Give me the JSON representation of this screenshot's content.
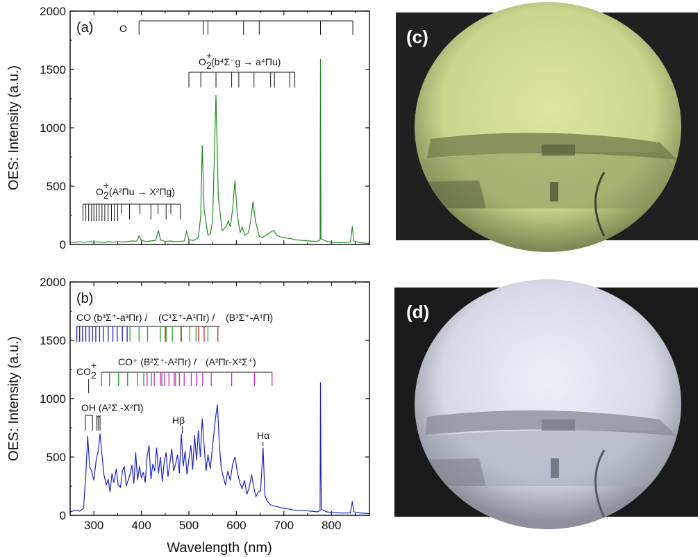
{
  "colors": {
    "spectrum_a": "#1f8a1f",
    "spectrum_b": "#1a22c8",
    "co_blue": "#1a22c8",
    "co_green": "#19b219",
    "co_red": "#d42020",
    "coplus_green": "#19a019",
    "coplus_magenta": "#d21fd2",
    "photo_c_glow": "#dfe7a6",
    "photo_d_glow": "#e4e6f2"
  },
  "chart_data": [
    {
      "type": "line",
      "panel_label": "(a)",
      "xlabel": "",
      "ylabel": "OES: Intensity (a.u.)",
      "xlim": [
        250,
        880
      ],
      "ylim": [
        0,
        2000
      ],
      "x_ticks": [],
      "y_ticks": [
        "0",
        "500",
        "1000",
        "1500",
        "2000"
      ],
      "series": [
        {
          "color": "#1f8a1f",
          "points": [
            [
              250,
              20
            ],
            [
              260,
              18
            ],
            [
              270,
              22
            ],
            [
              280,
              19
            ],
            [
              290,
              24
            ],
            [
              300,
              20
            ],
            [
              310,
              22
            ],
            [
              320,
              18
            ],
            [
              330,
              23
            ],
            [
              340,
              20
            ],
            [
              350,
              25
            ],
            [
              360,
              22
            ],
            [
              370,
              24
            ],
            [
              380,
              30
            ],
            [
              390,
              28
            ],
            [
              395,
              75
            ],
            [
              400,
              35
            ],
            [
              410,
              25
            ],
            [
              420,
              30
            ],
            [
              430,
              35
            ],
            [
              436,
              120
            ],
            [
              440,
              40
            ],
            [
              450,
              25
            ],
            [
              460,
              30
            ],
            [
              470,
              25
            ],
            [
              480,
              25
            ],
            [
              490,
              30
            ],
            [
              495,
              110
            ],
            [
              500,
              40
            ],
            [
              510,
              35
            ],
            [
              520,
              60
            ],
            [
              525,
              250
            ],
            [
              528,
              850
            ],
            [
              532,
              300
            ],
            [
              540,
              80
            ],
            [
              545,
              90
            ],
            [
              550,
              200
            ],
            [
              557,
              1280
            ],
            [
              562,
              400
            ],
            [
              570,
              120
            ],
            [
              578,
              150
            ],
            [
              583,
              200
            ],
            [
              587,
              150
            ],
            [
              592,
              300
            ],
            [
              597,
              550
            ],
            [
              602,
              250
            ],
            [
              608,
              100
            ],
            [
              612,
              150
            ],
            [
              618,
              80
            ],
            [
              625,
              100
            ],
            [
              630,
              200
            ],
            [
              635,
              370
            ],
            [
              640,
              200
            ],
            [
              648,
              70
            ],
            [
              655,
              60
            ],
            [
              662,
              80
            ],
            [
              670,
              100
            ],
            [
              678,
              120
            ],
            [
              685,
              80
            ],
            [
              695,
              60
            ],
            [
              705,
              55
            ],
            [
              715,
              50
            ],
            [
              725,
              40
            ],
            [
              740,
              35
            ],
            [
              755,
              30
            ],
            [
              770,
              25
            ],
            [
              776,
              40
            ],
            [
              777,
              1590
            ],
            [
              778,
              50
            ],
            [
              790,
              25
            ],
            [
              800,
              20
            ],
            [
              820,
              15
            ],
            [
              840,
              20
            ],
            [
              844,
              155
            ],
            [
              847,
              30
            ],
            [
              860,
              15
            ],
            [
              880,
              10
            ]
          ]
        }
      ],
      "annotations": [
        {
          "label": "O",
          "lines": [
            395,
            530,
            540,
            615,
            648,
            777,
            845
          ]
        },
        {
          "label_base": "O",
          "label_sup": "+",
          "label_sub": "2",
          "label_rest": "(b⁴Σ⁻g → a⁴Πu)",
          "lines": [
            500,
            525,
            557,
            590,
            605,
            637,
            672,
            680,
            712,
            723
          ]
        },
        {
          "label_base": "O",
          "label_sup": "+",
          "label_sub": "2",
          "label_rest": "(A²Πu → X²Πg)",
          "lines": [
            277,
            283,
            289,
            295,
            300,
            305,
            311,
            317,
            323,
            330,
            337,
            343,
            350,
            358,
            375,
            397,
            420,
            435,
            452,
            462,
            482
          ]
        }
      ]
    },
    {
      "type": "line",
      "panel_label": "(b)",
      "xlabel": "Wavelength (nm)",
      "ylabel": "OES: Intensity (a.u.)",
      "xlim": [
        250,
        880
      ],
      "ylim": [
        0,
        2000
      ],
      "x_ticks": [
        "300",
        "400",
        "500",
        "600",
        "700",
        "800"
      ],
      "y_ticks": [
        "0",
        "500",
        "1000",
        "1500",
        "2000"
      ],
      "series": [
        {
          "color": "#1a22c8",
          "points": [
            [
              250,
              30
            ],
            [
              258,
              40
            ],
            [
              265,
              45
            ],
            [
              270,
              35
            ],
            [
              278,
              60
            ],
            [
              283,
              350
            ],
            [
              287,
              680
            ],
            [
              291,
              420
            ],
            [
              295,
              380
            ],
            [
              300,
              300
            ],
            [
              305,
              480
            ],
            [
              309,
              550
            ],
            [
              313,
              700
            ],
            [
              317,
              520
            ],
            [
              321,
              350
            ],
            [
              326,
              260
            ],
            [
              330,
              310
            ],
            [
              334,
              200
            ],
            [
              338,
              360
            ],
            [
              342,
              280
            ],
            [
              347,
              400
            ],
            [
              351,
              260
            ],
            [
              356,
              240
            ],
            [
              360,
              380
            ],
            [
              364,
              420
            ],
            [
              368,
              250
            ],
            [
              372,
              300
            ],
            [
              376,
              350
            ],
            [
              380,
              430
            ],
            [
              384,
              270
            ],
            [
              388,
              540
            ],
            [
              392,
              300
            ],
            [
              396,
              420
            ],
            [
              400,
              320
            ],
            [
              404,
              370
            ],
            [
              408,
              280
            ],
            [
              412,
              500
            ],
            [
              416,
              600
            ],
            [
              420,
              310
            ],
            [
              424,
              440
            ],
            [
              428,
              380
            ],
            [
              432,
              580
            ],
            [
              436,
              360
            ],
            [
              440,
              500
            ],
            [
              444,
              290
            ],
            [
              448,
              460
            ],
            [
              452,
              540
            ],
            [
              456,
              330
            ],
            [
              460,
              450
            ],
            [
              464,
              570
            ],
            [
              468,
              380
            ],
            [
              472,
              440
            ],
            [
              476,
              520
            ],
            [
              480,
              360
            ],
            [
              484,
              700
            ],
            [
              488,
              420
            ],
            [
              492,
              550
            ],
            [
              496,
              350
            ],
            [
              500,
              480
            ],
            [
              504,
              600
            ],
            [
              508,
              390
            ],
            [
              512,
              690
            ],
            [
              516,
              470
            ],
            [
              520,
              730
            ],
            [
              524,
              500
            ],
            [
              528,
              830
            ],
            [
              532,
              600
            ],
            [
              536,
              380
            ],
            [
              540,
              520
            ],
            [
              545,
              400
            ],
            [
              550,
              600
            ],
            [
              556,
              830
            ],
            [
              560,
              950
            ],
            [
              564,
              620
            ],
            [
              568,
              400
            ],
            [
              573,
              320
            ],
            [
              577,
              260
            ],
            [
              582,
              380
            ],
            [
              587,
              300
            ],
            [
              592,
              440
            ],
            [
              597,
              500
            ],
            [
              602,
              370
            ],
            [
              607,
              280
            ],
            [
              612,
              230
            ],
            [
              617,
              300
            ],
            [
              622,
              180
            ],
            [
              627,
              240
            ],
            [
              632,
              350
            ],
            [
              636,
              250
            ],
            [
              641,
              160
            ],
            [
              646,
              200
            ],
            [
              651,
              210
            ],
            [
              656,
              580
            ],
            [
              660,
              170
            ],
            [
              665,
              120
            ],
            [
              672,
              90
            ],
            [
              680,
              80
            ],
            [
              690,
              70
            ],
            [
              700,
              60
            ],
            [
              710,
              55
            ],
            [
              720,
              45
            ],
            [
              730,
              40
            ],
            [
              745,
              40
            ],
            [
              760,
              35
            ],
            [
              770,
              30
            ],
            [
              776,
              40
            ],
            [
              777,
              1140
            ],
            [
              778,
              380
            ],
            [
              779,
              50
            ],
            [
              790,
              30
            ],
            [
              800,
              25
            ],
            [
              820,
              20
            ],
            [
              840,
              20
            ],
            [
              844,
              120
            ],
            [
              847,
              30
            ],
            [
              860,
              20
            ],
            [
              880,
              15
            ]
          ]
        }
      ],
      "annotations": [
        {
          "label": "OH (A²Σ -X²Π)",
          "lines": [
            282,
            297,
            306,
            309,
            313
          ]
        },
        {
          "label": "Hβ",
          "line": 486
        },
        {
          "label": "Hα",
          "line": 656
        },
        {
          "label_base": "CO",
          "label_sup": "+",
          "label_sub": "2",
          "lines": [
            289
          ]
        },
        {
          "label": "CO (b³Σ⁺-a³Πr) /",
          "color": "#1a22c8",
          "lines": [
            264,
            270,
            276,
            283,
            290,
            297,
            304,
            312,
            320,
            330,
            340,
            349,
            360,
            370
          ]
        },
        {
          "label": "(C¹Σ⁺-A¹Πr) /",
          "color": "#19b219",
          "lines": [
            376,
            395,
            413,
            440,
            452,
            465,
            483,
            502,
            515,
            540
          ]
        },
        {
          "label": "(B¹Σ⁺-A¹Π)",
          "color": "#d42020",
          "lines": [
            450,
            484,
            520,
            532,
            561
          ]
        },
        {
          "label": "CO⁺ (B²Σ⁺-A²Πr) /",
          "color": "#19a019",
          "lines": [
            316,
            333,
            352,
            371,
            392,
            405,
            421,
            443,
            472
          ]
        },
        {
          "label": "(A²Πr-X²Σ⁺)",
          "color": "#d21fd2",
          "lines": [
            412,
            427,
            440,
            449,
            458,
            469,
            480,
            490,
            505,
            516,
            529,
            547,
            590,
            638,
            675
          ]
        }
      ]
    }
  ],
  "photos": [
    {
      "label": "(c)"
    },
    {
      "label": "(d)"
    }
  ]
}
